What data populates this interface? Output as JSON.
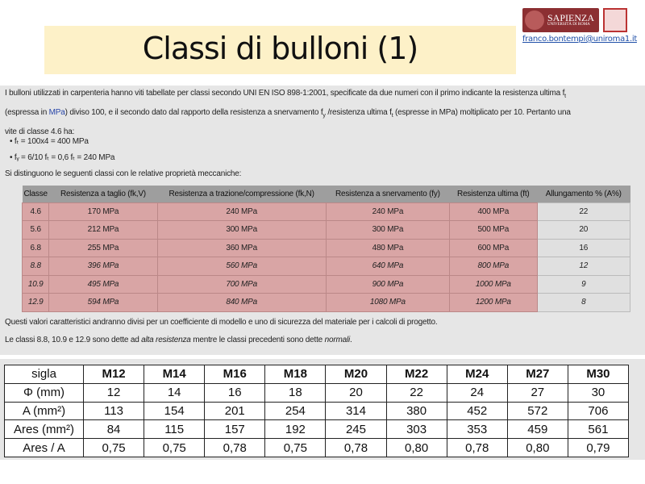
{
  "title": "Classi di bulloni (1)",
  "logo": {
    "name": "SAPIENZA",
    "sub": "UNIVERSITÀ DI ROMA",
    "email": "franco.bontempi@uniroma1.it"
  },
  "text": {
    "p1a": "I bulloni utilizzati in carpenteria hanno viti tabellate per classi secondo UNI EN ISO 898-1:2001, specificate da due numeri con il primo indicante la resistenza ultima f",
    "p1b": "(espressa in ",
    "p1link": "MPa",
    "p1c": ") diviso 100, e il secondo dato dal rapporto della resistenza a snervamento f",
    "p1d": " /resistenza ultima f",
    "p1e": " (espresse in MPa) moltiplicato per 10. Pertanto una",
    "p1f": "vite di classe 4.6 ha:",
    "b1": "fₜ = 100x4 = 400 MPa",
    "b2": "fᵧ = 6/10 fₜ = 0,6 fₜ = 240 MPa",
    "p2": "Si distinguono le seguenti classi con le relative proprietà meccaniche:",
    "p3": "Questi valori caratteristici andranno divisi per un coefficiente di modello e uno di sicurezza del materiale per i calcoli di progetto.",
    "p4a": "Le classi 8.8, 10.9 e 12.9 sono dette ad ",
    "p4b": "alta resistenza",
    "p4c": " mentre le classi precedenti sono dette ",
    "p4d": "normali",
    "p4e": "."
  },
  "classes_table": {
    "headers": [
      "Classe",
      "Resistenza a taglio (fk,V)",
      "Resistenza a trazione/compressione (fk,N)",
      "Resistenza a snervamento (fy)",
      "Resistenza ultima (ft)",
      "Allungamento % (A%)"
    ],
    "rows": [
      [
        "4.6",
        "170 MPa",
        "240 MPa",
        "240 MPa",
        "400 MPa",
        "22"
      ],
      [
        "5.6",
        "212 MPa",
        "300 MPa",
        "300 MPa",
        "500 MPa",
        "20"
      ],
      [
        "6.8",
        "255 MPa",
        "360 MPa",
        "480 MPa",
        "600 MPa",
        "16"
      ],
      [
        "8.8",
        "396 MPa",
        "560 MPa",
        "640 MPa",
        "800 MPa",
        "12"
      ],
      [
        "10.9",
        "495 MPa",
        "700 MPa",
        "900 MPa",
        "1000 MPa",
        "9"
      ],
      [
        "12.9",
        "594 MPa",
        "840 MPa",
        "1080 MPa",
        "1200 MPa",
        "8"
      ]
    ]
  },
  "bolts_table": {
    "headers": [
      "sigla",
      "M12",
      "M14",
      "M16",
      "M18",
      "M20",
      "M22",
      "M24",
      "M27",
      "M30"
    ],
    "rows": [
      [
        "Φ (mm)",
        "12",
        "14",
        "16",
        "18",
        "20",
        "22",
        "24",
        "27",
        "30"
      ],
      [
        "A (mm²)",
        "113",
        "154",
        "201",
        "254",
        "314",
        "380",
        "452",
        "572",
        "706"
      ],
      [
        "Ares (mm²)",
        "84",
        "115",
        "157",
        "192",
        "245",
        "303",
        "353",
        "459",
        "561"
      ],
      [
        "Ares / A",
        "0,75",
        "0,75",
        "0,78",
        "0,75",
        "0,78",
        "0,80",
        "0,78",
        "0,80",
        "0,79"
      ]
    ]
  },
  "colors": {
    "title_band": "#fdf1c8",
    "high_cell": "#d9a5a5",
    "header": "#9e9e9e",
    "link": "#2846a8"
  }
}
